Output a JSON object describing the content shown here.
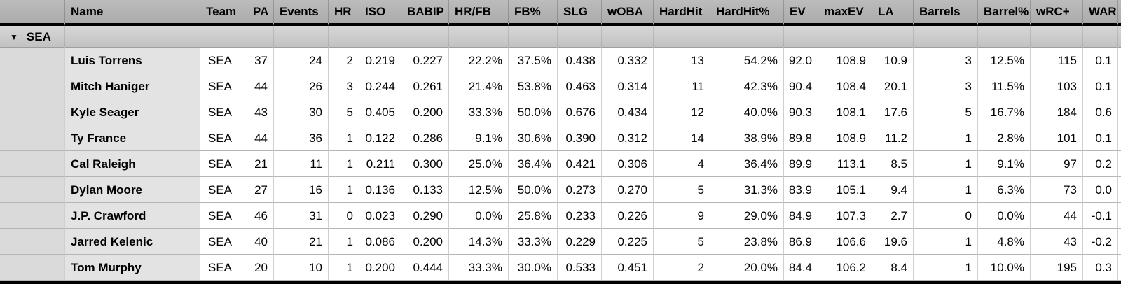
{
  "table": {
    "columns": [
      {
        "label": "Name"
      },
      {
        "label": "Team"
      },
      {
        "label": "PA"
      },
      {
        "label": "Events"
      },
      {
        "label": "HR"
      },
      {
        "label": "ISO"
      },
      {
        "label": "BABIP"
      },
      {
        "label": "HR/FB"
      },
      {
        "label": "FB%"
      },
      {
        "label": "SLG"
      },
      {
        "label": "wOBA"
      },
      {
        "label": "HardHit"
      },
      {
        "label": "HardHit%"
      },
      {
        "label": "EV"
      },
      {
        "label": "maxEV"
      },
      {
        "label": "LA"
      },
      {
        "label": "Barrels"
      },
      {
        "label": "Barrel%"
      },
      {
        "label": "wRC+"
      },
      {
        "label": "WAR"
      }
    ],
    "group_row": {
      "icon": "collapse-triangle",
      "icon_glyph": "▼",
      "label": "SEA"
    },
    "rows": [
      {
        "name": "Luis Torrens",
        "values": [
          "SEA",
          "37",
          "24",
          "2",
          "0.219",
          "0.227",
          "22.2%",
          "37.5%",
          "0.438",
          "0.332",
          "13",
          "54.2%",
          "92.0",
          "108.9",
          "10.9",
          "3",
          "12.5%",
          "115",
          "0.1"
        ]
      },
      {
        "name": "Mitch Haniger",
        "values": [
          "SEA",
          "44",
          "26",
          "3",
          "0.244",
          "0.261",
          "21.4%",
          "53.8%",
          "0.463",
          "0.314",
          "11",
          "42.3%",
          "90.4",
          "108.4",
          "20.1",
          "3",
          "11.5%",
          "103",
          "0.1"
        ]
      },
      {
        "name": "Kyle Seager",
        "values": [
          "SEA",
          "43",
          "30",
          "5",
          "0.405",
          "0.200",
          "33.3%",
          "50.0%",
          "0.676",
          "0.434",
          "12",
          "40.0%",
          "90.3",
          "108.1",
          "17.6",
          "5",
          "16.7%",
          "184",
          "0.6"
        ]
      },
      {
        "name": "Ty France",
        "values": [
          "SEA",
          "44",
          "36",
          "1",
          "0.122",
          "0.286",
          "9.1%",
          "30.6%",
          "0.390",
          "0.312",
          "14",
          "38.9%",
          "89.8",
          "108.9",
          "11.2",
          "1",
          "2.8%",
          "101",
          "0.1"
        ]
      },
      {
        "name": "Cal Raleigh",
        "values": [
          "SEA",
          "21",
          "11",
          "1",
          "0.211",
          "0.300",
          "25.0%",
          "36.4%",
          "0.421",
          "0.306",
          "4",
          "36.4%",
          "89.9",
          "113.1",
          "8.5",
          "1",
          "9.1%",
          "97",
          "0.2"
        ]
      },
      {
        "name": "Dylan Moore",
        "values": [
          "SEA",
          "27",
          "16",
          "1",
          "0.136",
          "0.133",
          "12.5%",
          "50.0%",
          "0.273",
          "0.270",
          "5",
          "31.3%",
          "83.9",
          "105.1",
          "9.4",
          "1",
          "6.3%",
          "73",
          "0.0"
        ]
      },
      {
        "name": "J.P. Crawford",
        "values": [
          "SEA",
          "46",
          "31",
          "0",
          "0.023",
          "0.290",
          "0.0%",
          "25.8%",
          "0.233",
          "0.226",
          "9",
          "29.0%",
          "84.9",
          "107.3",
          "2.7",
          "0",
          "0.0%",
          "44",
          "-0.1"
        ]
      },
      {
        "name": "Jarred Kelenic",
        "values": [
          "SEA",
          "40",
          "21",
          "1",
          "0.086",
          "0.200",
          "14.3%",
          "33.3%",
          "0.229",
          "0.225",
          "5",
          "23.8%",
          "86.9",
          "106.6",
          "19.6",
          "1",
          "4.8%",
          "43",
          "-0.2"
        ]
      },
      {
        "name": "Tom Murphy",
        "values": [
          "SEA",
          "20",
          "10",
          "1",
          "0.200",
          "0.444",
          "33.3%",
          "30.0%",
          "0.533",
          "0.451",
          "2",
          "20.0%",
          "84.4",
          "106.2",
          "8.4",
          "1",
          "10.0%",
          "195",
          "0.3"
        ]
      }
    ]
  },
  "colors": {
    "header-bg-top": "#bcbcbc",
    "header-bg-bottom": "#ababab",
    "group-bg-top": "#d7d7d7",
    "group-bg-bottom": "#c2c2c2",
    "gutter-cell-bg": "#dadada",
    "name-cell-bg": "#e3e3e3",
    "data-cell-bg": "#ffffff",
    "heavy-border": "#000000",
    "row-border": "#b5b5b5",
    "col-border": "#cfcfcf",
    "name-col-divider": "#757575",
    "text": "#000000"
  }
}
